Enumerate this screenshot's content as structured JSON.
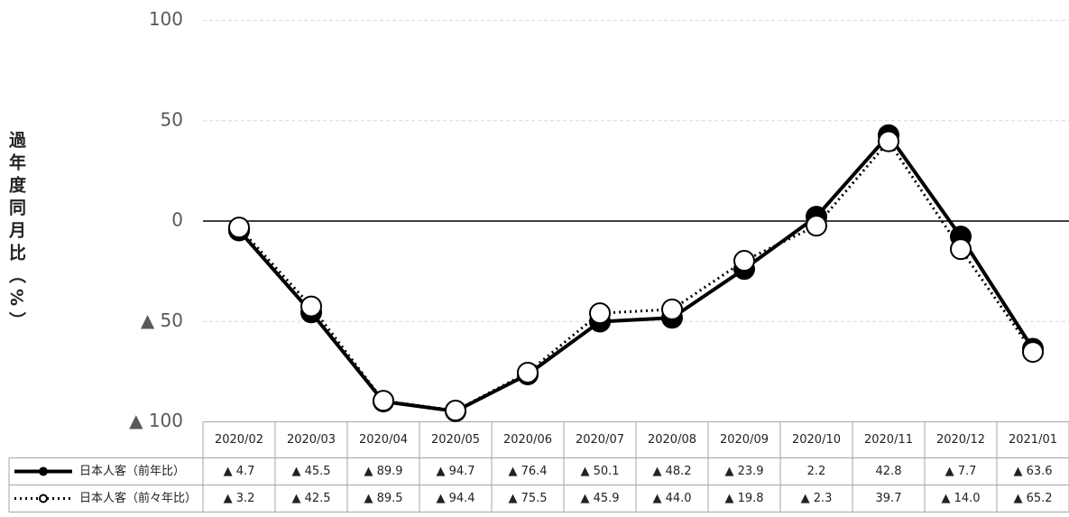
{
  "chart_data": {
    "type": "line",
    "y_label": "過年度同月比（%）",
    "categories": [
      "2020/02",
      "2020/03",
      "2020/04",
      "2020/05",
      "2020/06",
      "2020/07",
      "2020/08",
      "2020/09",
      "2020/10",
      "2020/11",
      "2020/12",
      "2021/01"
    ],
    "series": [
      {
        "name": "日本人客（前年比）",
        "color": "#000000",
        "line_style": "solid",
        "marker_fill": "#000000",
        "values": [
          -4.7,
          -45.5,
          -89.9,
          -94.7,
          -76.4,
          -50.1,
          -48.2,
          -23.9,
          2.2,
          42.8,
          -7.7,
          -63.6
        ],
        "value_labels": [
          "▲ 4.7",
          "▲ 45.5",
          "▲ 89.9",
          "▲ 94.7",
          "▲ 76.4",
          "▲ 50.1",
          "▲ 48.2",
          "▲ 23.9",
          "2.2",
          "42.8",
          "▲ 7.7",
          "▲ 63.6"
        ]
      },
      {
        "name": "日本人客（前々年比）",
        "color": "#000000",
        "line_style": "dotted",
        "marker_fill": "#ffffff",
        "values": [
          -3.2,
          -42.5,
          -89.5,
          -94.4,
          -75.5,
          -45.9,
          -44.0,
          -19.8,
          -2.3,
          39.7,
          -14.0,
          -65.2
        ],
        "value_labels": [
          "▲ 3.2",
          "▲ 42.5",
          "▲ 89.5",
          "▲ 94.4",
          "▲ 75.5",
          "▲ 45.9",
          "▲ 44.0",
          "▲ 19.8",
          "▲ 2.3",
          "39.7",
          "▲ 14.0",
          "▲ 65.2"
        ]
      }
    ],
    "ylim": [
      -100,
      100
    ],
    "yticks": [
      {
        "value": -100,
        "label": "▲ 100"
      },
      {
        "value": -50,
        "label": "▲ 50"
      },
      0,
      50,
      100
    ],
    "grid": true
  }
}
